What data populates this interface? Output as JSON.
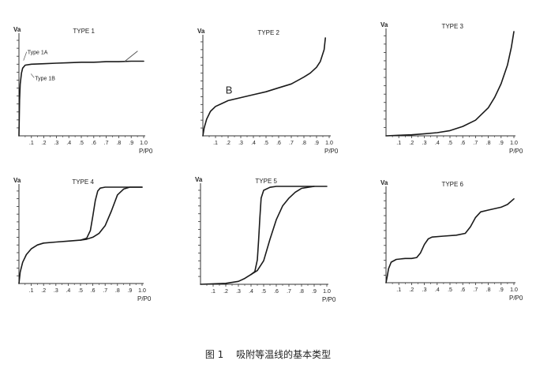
{
  "figure": {
    "caption_number": "图 1",
    "caption_text": "吸附等温线的基本类型",
    "colors": {
      "ink": "#1a1a1a",
      "tick": "#333333",
      "note": "#555555"
    }
  },
  "chart_data": [
    {
      "type": "line",
      "title": "TYPE 1",
      "ylabel": "Va",
      "xlabel": "P/P0",
      "xlim": [
        0,
        1.0
      ],
      "ylim": [
        0,
        1.0
      ],
      "x_ticks": [
        ".1",
        ".2",
        ".3",
        ".4",
        ".5",
        ".6",
        ".7",
        ".8",
        ".9",
        "1.0"
      ],
      "grid": false,
      "annotations": [
        {
          "text": "Type 1A",
          "x": 0.03,
          "y": 0.82
        },
        {
          "text": "Type 1B",
          "x": 0.09,
          "y": 0.56
        }
      ],
      "series": [
        {
          "x": [
            0,
            0.005,
            0.01,
            0.02,
            0.03,
            0.05,
            0.1,
            0.2,
            0.3,
            0.4,
            0.5,
            0.6,
            0.7,
            0.8,
            0.9,
            1.0
          ],
          "y": [
            0,
            0.36,
            0.52,
            0.63,
            0.68,
            0.71,
            0.72,
            0.725,
            0.73,
            0.735,
            0.74,
            0.74,
            0.745,
            0.745,
            0.75,
            0.75
          ]
        },
        {
          "x": [
            0.85,
            0.95
          ],
          "y": [
            0.75,
            0.85
          ]
        }
      ]
    },
    {
      "type": "line",
      "title": "TYPE 2",
      "ylabel": "Va",
      "xlabel": "P/P0",
      "xlim": [
        0,
        1.0
      ],
      "ylim": [
        0,
        1.0
      ],
      "x_ticks": [
        ".1",
        ".2",
        ".3",
        ".4",
        ".5",
        ".6",
        ".7",
        ".8",
        ".9",
        "1.0"
      ],
      "grid": false,
      "annotations": [
        {
          "text": "B",
          "x": 0.18,
          "y": 0.43
        }
      ],
      "series": [
        {
          "x": [
            0,
            0.01,
            0.03,
            0.06,
            0.1,
            0.15,
            0.2,
            0.3,
            0.4,
            0.5,
            0.6,
            0.7,
            0.8,
            0.85,
            0.9,
            0.93,
            0.96,
            0.97
          ],
          "y": [
            0,
            0.08,
            0.17,
            0.25,
            0.3,
            0.33,
            0.36,
            0.39,
            0.42,
            0.45,
            0.49,
            0.53,
            0.6,
            0.64,
            0.7,
            0.76,
            0.88,
            1.0
          ]
        }
      ]
    },
    {
      "type": "line",
      "title": "TYPE 3",
      "ylabel": "Va",
      "xlabel": "P/P0",
      "xlim": [
        0,
        1.0
      ],
      "ylim": [
        0,
        1.0
      ],
      "x_ticks": [
        ".1",
        ".2",
        ".3",
        ".4",
        ".5",
        ".6",
        ".7",
        ".8",
        ".9",
        "1.0"
      ],
      "grid": false,
      "series": [
        {
          "x": [
            0,
            0.1,
            0.2,
            0.3,
            0.4,
            0.5,
            0.6,
            0.7,
            0.8,
            0.85,
            0.9,
            0.95,
            0.98,
            1.0
          ],
          "y": [
            0,
            0.005,
            0.01,
            0.02,
            0.03,
            0.05,
            0.09,
            0.15,
            0.27,
            0.37,
            0.5,
            0.68,
            0.85,
            1.0
          ]
        }
      ]
    },
    {
      "type": "line",
      "title": "TYPE 4",
      "ylabel": "Va",
      "xlabel": "P/P0",
      "xlim": [
        0,
        1.0
      ],
      "ylim": [
        0,
        1.0
      ],
      "x_ticks": [
        ".1",
        ".2",
        ".3",
        ".4",
        ".5",
        ".6",
        ".7",
        ".8",
        ".9",
        "1.0"
      ],
      "grid": false,
      "series": [
        {
          "x": [
            0,
            0.01,
            0.03,
            0.06,
            0.1,
            0.15,
            0.2,
            0.3,
            0.4,
            0.5,
            0.55,
            0.6,
            0.65,
            0.7,
            0.75,
            0.8,
            0.85,
            0.9,
            1.0
          ],
          "y": [
            0,
            0.12,
            0.22,
            0.3,
            0.36,
            0.4,
            0.42,
            0.43,
            0.44,
            0.45,
            0.46,
            0.48,
            0.52,
            0.6,
            0.75,
            0.92,
            0.98,
            1.0,
            1.0
          ]
        },
        {
          "x": [
            0.5,
            0.55,
            0.58,
            0.6,
            0.62,
            0.64,
            0.66,
            0.7,
            0.8,
            0.9,
            1.0
          ],
          "y": [
            0.45,
            0.47,
            0.55,
            0.7,
            0.86,
            0.96,
            0.99,
            1.0,
            1.0,
            1.0,
            1.0
          ]
        }
      ]
    },
    {
      "type": "line",
      "title": "TYPE 5",
      "ylabel": "Va",
      "xlabel": "P/P0",
      "xlim": [
        0,
        1.0
      ],
      "ylim": [
        0,
        1.0
      ],
      "x_ticks": [
        ".1",
        ".2",
        ".3",
        ".4",
        ".5",
        ".6",
        ".7",
        ".8",
        ".9",
        "1.0"
      ],
      "grid": false,
      "series": [
        {
          "x": [
            0,
            0.1,
            0.2,
            0.3,
            0.35,
            0.4,
            0.45,
            0.5,
            0.55,
            0.6,
            0.65,
            0.7,
            0.75,
            0.8,
            0.85,
            0.9,
            1.0
          ],
          "y": [
            0,
            0.005,
            0.01,
            0.03,
            0.06,
            0.1,
            0.14,
            0.24,
            0.46,
            0.66,
            0.8,
            0.88,
            0.94,
            0.98,
            0.99,
            1.0,
            1.0
          ]
        },
        {
          "x": [
            0.4,
            0.43,
            0.45,
            0.46,
            0.47,
            0.48,
            0.5,
            0.55,
            0.6,
            0.7,
            0.8,
            0.9
          ],
          "y": [
            0.1,
            0.13,
            0.25,
            0.45,
            0.68,
            0.88,
            0.96,
            0.99,
            1.0,
            1.0,
            1.0,
            1.0
          ]
        }
      ]
    },
    {
      "type": "line",
      "title": "TYPE 6",
      "ylabel": "Va",
      "xlabel": "P/P0",
      "xlim": [
        0,
        1.0
      ],
      "ylim": [
        0,
        1.0
      ],
      "x_ticks": [
        ".1",
        ".2",
        ".3",
        ".4",
        ".5",
        ".6",
        ".7",
        ".8",
        ".9",
        "1.0"
      ],
      "grid": false,
      "series": [
        {
          "x": [
            0,
            0.01,
            0.02,
            0.04,
            0.08,
            0.15,
            0.2,
            0.24,
            0.27,
            0.3,
            0.33,
            0.36,
            0.45,
            0.55,
            0.62,
            0.66,
            0.7,
            0.74,
            0.8,
            0.9,
            0.95,
            1.0
          ],
          "y": [
            0,
            0.07,
            0.15,
            0.22,
            0.25,
            0.26,
            0.26,
            0.27,
            0.32,
            0.41,
            0.47,
            0.49,
            0.5,
            0.51,
            0.53,
            0.6,
            0.7,
            0.76,
            0.78,
            0.81,
            0.84,
            0.9
          ]
        }
      ]
    }
  ]
}
